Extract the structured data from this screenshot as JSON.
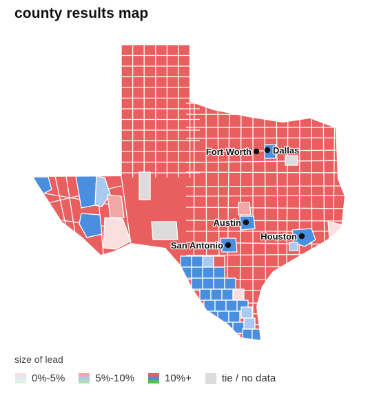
{
  "title": "county results map",
  "colors": {
    "red_strong": "#e95f5f",
    "red_medium": "#f3a6a6",
    "red_light": "#fbdede",
    "blue_strong": "#4a8fdf",
    "blue_medium": "#a9c9f0",
    "blue_light": "#ddeaf8",
    "green_strong": "#5cb85c",
    "green_medium": "#b4dcb4",
    "green_light": "#e3f2e3",
    "nodata": "#dcdcdc",
    "border": "#ffffff"
  },
  "cities": {
    "fort_worth": "Fort Worth",
    "dallas": "Dallas",
    "austin": "Austin",
    "houston": "Houston",
    "san_antonio": "San Antonio"
  },
  "legend": {
    "title": "size of lead",
    "items": [
      {
        "label": "0%-5%",
        "level": "light"
      },
      {
        "label": "5%-10%",
        "level": "medium"
      },
      {
        "label": "10%+",
        "level": "strong"
      },
      {
        "label": "tie / no data",
        "level": "nodata"
      }
    ]
  }
}
